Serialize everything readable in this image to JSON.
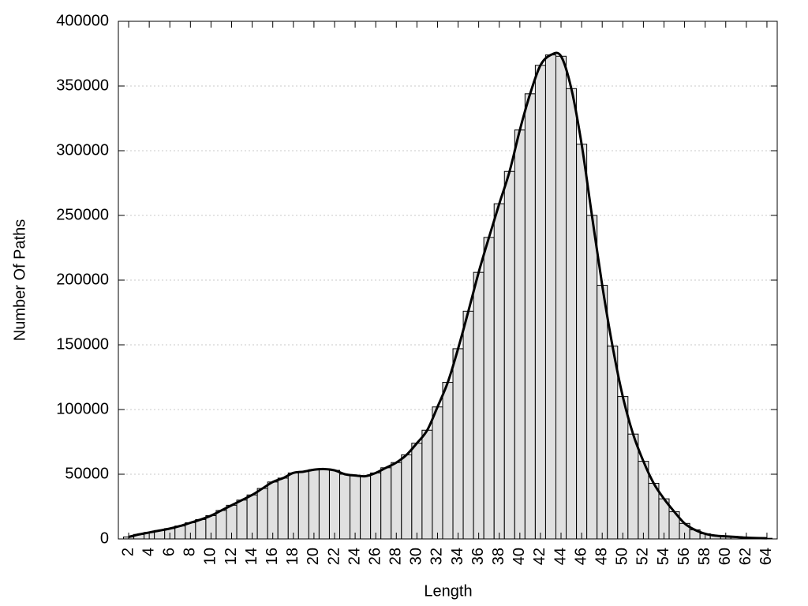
{
  "chart_data": {
    "type": "bar",
    "xlabel": "Length",
    "ylabel": "Number Of Paths",
    "x": [
      2,
      3,
      4,
      5,
      6,
      7,
      8,
      9,
      10,
      11,
      12,
      13,
      14,
      15,
      16,
      17,
      18,
      19,
      20,
      21,
      22,
      23,
      24,
      25,
      26,
      27,
      28,
      29,
      30,
      31,
      32,
      33,
      34,
      35,
      36,
      37,
      38,
      39,
      40,
      41,
      42,
      43,
      44,
      45,
      46,
      47,
      48,
      49,
      50,
      51,
      52,
      53,
      54,
      55,
      56,
      57,
      58,
      59,
      60,
      61,
      62,
      63,
      64
    ],
    "values": [
      1500,
      3500,
      5000,
      6500,
      8000,
      10000,
      12500,
      15000,
      18000,
      22000,
      26000,
      30000,
      34000,
      39000,
      44000,
      47000,
      51000,
      52000,
      53500,
      54000,
      53000,
      50000,
      49000,
      48500,
      51000,
      55000,
      59000,
      65000,
      74000,
      84000,
      102000,
      121000,
      147000,
      176000,
      206000,
      233000,
      259000,
      284000,
      316000,
      344000,
      366000,
      374000,
      373000,
      348000,
      305000,
      250000,
      196000,
      149000,
      110000,
      81000,
      60000,
      43000,
      31000,
      21000,
      12000,
      7000,
      4000,
      2500,
      2000,
      1500,
      1000,
      700,
      500
    ],
    "color": "#e0e0e0",
    "line_color": "#000000",
    "smooth_line": true,
    "xlim": [
      1,
      65
    ],
    "xticks": [
      2,
      4,
      6,
      8,
      10,
      12,
      14,
      16,
      18,
      20,
      22,
      24,
      26,
      28,
      30,
      32,
      34,
      36,
      38,
      40,
      42,
      44,
      46,
      48,
      50,
      52,
      54,
      56,
      58,
      60,
      62,
      64
    ],
    "ylim": [
      0,
      400000
    ],
    "yticks": [
      0,
      50000,
      100000,
      150000,
      200000,
      250000,
      300000,
      350000,
      400000
    ],
    "grid": true
  }
}
